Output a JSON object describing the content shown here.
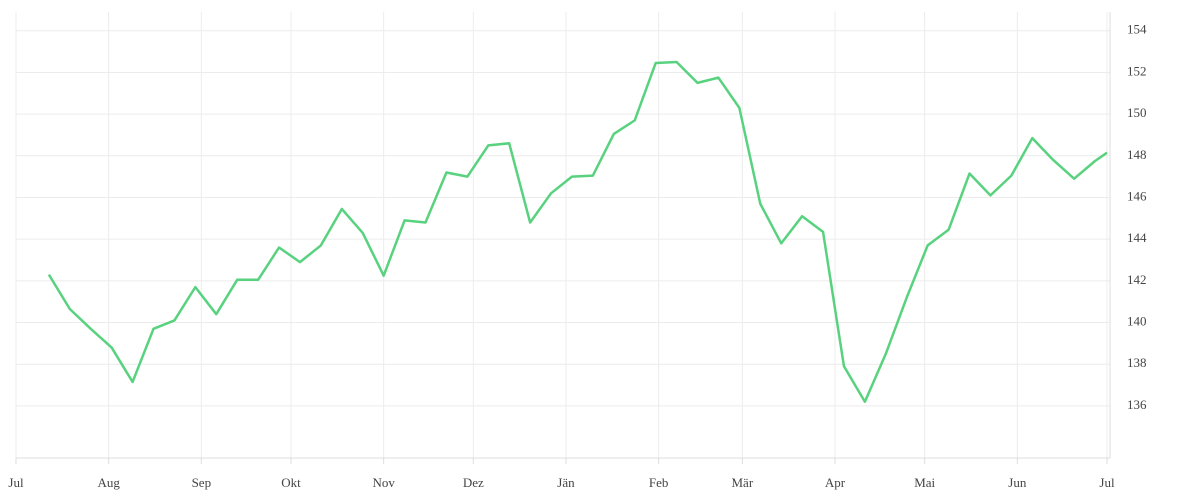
{
  "chart_data": {
    "type": "line",
    "x": [
      11,
      18,
      25,
      32,
      39,
      46,
      53,
      60,
      67,
      74,
      81,
      88,
      95,
      102,
      109,
      116,
      123,
      130,
      137,
      144,
      151,
      158,
      165,
      172,
      179,
      186,
      193,
      200,
      207,
      214,
      221,
      228,
      235,
      242,
      249,
      256,
      263,
      270,
      277,
      284,
      291,
      298,
      305,
      312,
      319,
      326,
      333,
      340,
      347,
      354,
      361,
      365
    ],
    "series": [
      {
        "color": "#58d27f",
        "values": [
          142.3,
          140.65,
          139.7,
          138.8,
          137.15,
          139.7,
          140.1,
          141.7,
          140.4,
          142.05,
          142.05,
          143.6,
          142.9,
          143.7,
          145.45,
          144.3,
          142.25,
          144.9,
          144.8,
          147.2,
          147.0,
          148.5,
          148.6,
          144.8,
          146.2,
          147.0,
          147.05,
          149.05,
          149.7,
          152.45,
          152.5,
          151.5,
          151.75,
          150.3,
          145.7,
          143.8,
          145.1,
          144.35,
          137.9,
          136.2,
          138.5,
          141.2,
          143.7,
          144.45,
          147.15,
          146.1,
          147.05,
          148.85,
          147.8,
          146.9,
          147.75,
          148.15
        ]
      }
    ],
    "xlim": [
      0,
      365
    ],
    "xticks": [
      {
        "value": 0,
        "label": "Jul"
      },
      {
        "value": 31,
        "label": "Aug"
      },
      {
        "value": 62,
        "label": "Sep"
      },
      {
        "value": 92,
        "label": "Okt"
      },
      {
        "value": 123,
        "label": "Nov"
      },
      {
        "value": 153,
        "label": "Dez"
      },
      {
        "value": 184,
        "label": "Jän"
      },
      {
        "value": 215,
        "label": "Feb"
      },
      {
        "value": 243,
        "label": "Mär"
      },
      {
        "value": 274,
        "label": "Apr"
      },
      {
        "value": 304,
        "label": "Mai"
      },
      {
        "value": 335,
        "label": "Jun"
      },
      {
        "value": 365,
        "label": "Jul"
      }
    ],
    "ylim": [
      133.5,
      154.9
    ],
    "yticks": [
      136,
      138,
      140,
      142,
      144,
      146,
      148,
      150,
      152,
      154
    ],
    "grid": true
  }
}
